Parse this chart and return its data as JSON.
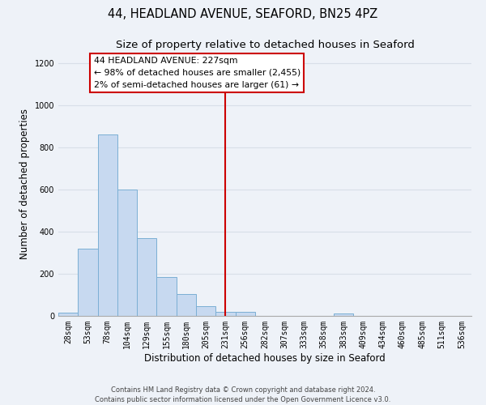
{
  "title_line1": "44, HEADLAND AVENUE, SEAFORD, BN25 4PZ",
  "title_line2": "Size of property relative to detached houses in Seaford",
  "xlabel": "Distribution of detached houses by size in Seaford",
  "ylabel": "Number of detached properties",
  "bin_labels": [
    "28sqm",
    "53sqm",
    "78sqm",
    "104sqm",
    "129sqm",
    "155sqm",
    "180sqm",
    "205sqm",
    "231sqm",
    "256sqm",
    "282sqm",
    "307sqm",
    "333sqm",
    "358sqm",
    "383sqm",
    "409sqm",
    "434sqm",
    "460sqm",
    "485sqm",
    "511sqm",
    "536sqm"
  ],
  "bar_values": [
    15,
    320,
    860,
    600,
    370,
    185,
    105,
    48,
    18,
    18,
    0,
    0,
    0,
    0,
    12,
    0,
    0,
    0,
    0,
    0,
    0
  ],
  "bar_color": "#c7d9f0",
  "bar_edge_color": "#7bafd4",
  "vline_x": 8,
  "vline_color": "#cc0000",
  "annotation_title": "44 HEADLAND AVENUE: 227sqm",
  "annotation_line1": "← 98% of detached houses are smaller (2,455)",
  "annotation_line2": "2% of semi-detached houses are larger (61) →",
  "annotation_box_color": "#ffffff",
  "annotation_box_edgecolor": "#cc0000",
  "ylim": [
    0,
    1250
  ],
  "yticks": [
    0,
    200,
    400,
    600,
    800,
    1000,
    1200
  ],
  "footer_line1": "Contains HM Land Registry data © Crown copyright and database right 2024.",
  "footer_line2": "Contains public sector information licensed under the Open Government Licence v3.0.",
  "background_color": "#eef2f8",
  "grid_color": "#d8dfe8",
  "title_fontsize": 10.5,
  "subtitle_fontsize": 9.5,
  "axis_label_fontsize": 8.5,
  "tick_fontsize": 7,
  "footer_fontsize": 6
}
